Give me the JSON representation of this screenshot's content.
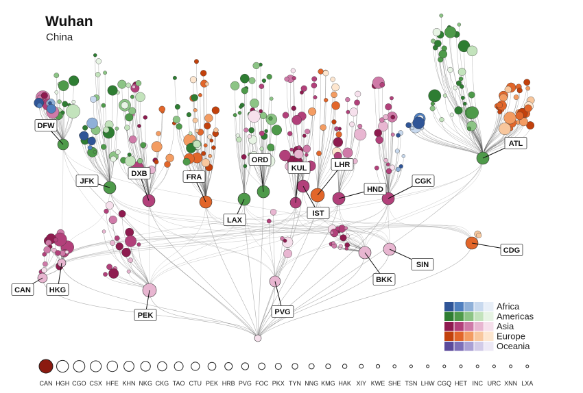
{
  "header": {
    "title": "Wuhan",
    "subtitle": "China"
  },
  "colors": {
    "Africa": [
      "#2f5597",
      "#4f7fbf",
      "#8fb0d8",
      "#c8d9ee",
      "#e8eff8"
    ],
    "Americas": [
      "#2e7d32",
      "#4e9a4a",
      "#8cc485",
      "#c3e3bc",
      "#e7f4e4"
    ],
    "Asia": [
      "#8e1b4f",
      "#b2407a",
      "#cf7aa8",
      "#e8b6d1",
      "#f6e0ec"
    ],
    "Europe": [
      "#c2410c",
      "#e2662a",
      "#f39c62",
      "#f8c79d",
      "#fde6cf"
    ],
    "Oceania": [
      "#5b4a9b",
      "#7d6fb8",
      "#aaa0d4",
      "#d2cbe8",
      "#ede9f6"
    ],
    "origin": "#8b1a10"
  },
  "legend": [
    "Africa",
    "Americas",
    "Asia",
    "Europe",
    "Oceania"
  ],
  "hubs": [
    {
      "code": "DFW",
      "region": "Americas"
    },
    {
      "code": "JFK",
      "region": "Americas"
    },
    {
      "code": "DXB",
      "region": "Asia"
    },
    {
      "code": "FRA",
      "region": "Europe"
    },
    {
      "code": "ORD",
      "region": "Americas"
    },
    {
      "code": "LAX",
      "region": "Americas"
    },
    {
      "code": "KUL",
      "region": "Asia"
    },
    {
      "code": "LHR",
      "region": "Europe"
    },
    {
      "code": "IST",
      "region": "Asia"
    },
    {
      "code": "HND",
      "region": "Asia"
    },
    {
      "code": "CGK",
      "region": "Asia"
    },
    {
      "code": "ATL",
      "region": "Americas"
    },
    {
      "code": "CAN",
      "region": "Asia"
    },
    {
      "code": "HKG",
      "region": "Asia"
    },
    {
      "code": "PEK",
      "region": "Asia"
    },
    {
      "code": "PVG",
      "region": "Asia"
    },
    {
      "code": "BKK",
      "region": "Asia"
    },
    {
      "code": "SIN",
      "region": "Asia"
    },
    {
      "code": "CDG",
      "region": "Europe"
    }
  ],
  "bottom_row": {
    "codes": [
      "CAN",
      "HGH",
      "CGO",
      "CSX",
      "HFE",
      "KHN",
      "NKG",
      "CKG",
      "TAO",
      "CTU",
      "PEK",
      "HRB",
      "PVG",
      "FOC",
      "PKX",
      "TYN",
      "NNG",
      "KMG",
      "HAK",
      "XIY",
      "KWE",
      "SHE",
      "TSN",
      "LHW",
      "CGQ",
      "HET",
      "INC",
      "URC",
      "XNN",
      "LXA"
    ],
    "highlighted": "CAN"
  }
}
